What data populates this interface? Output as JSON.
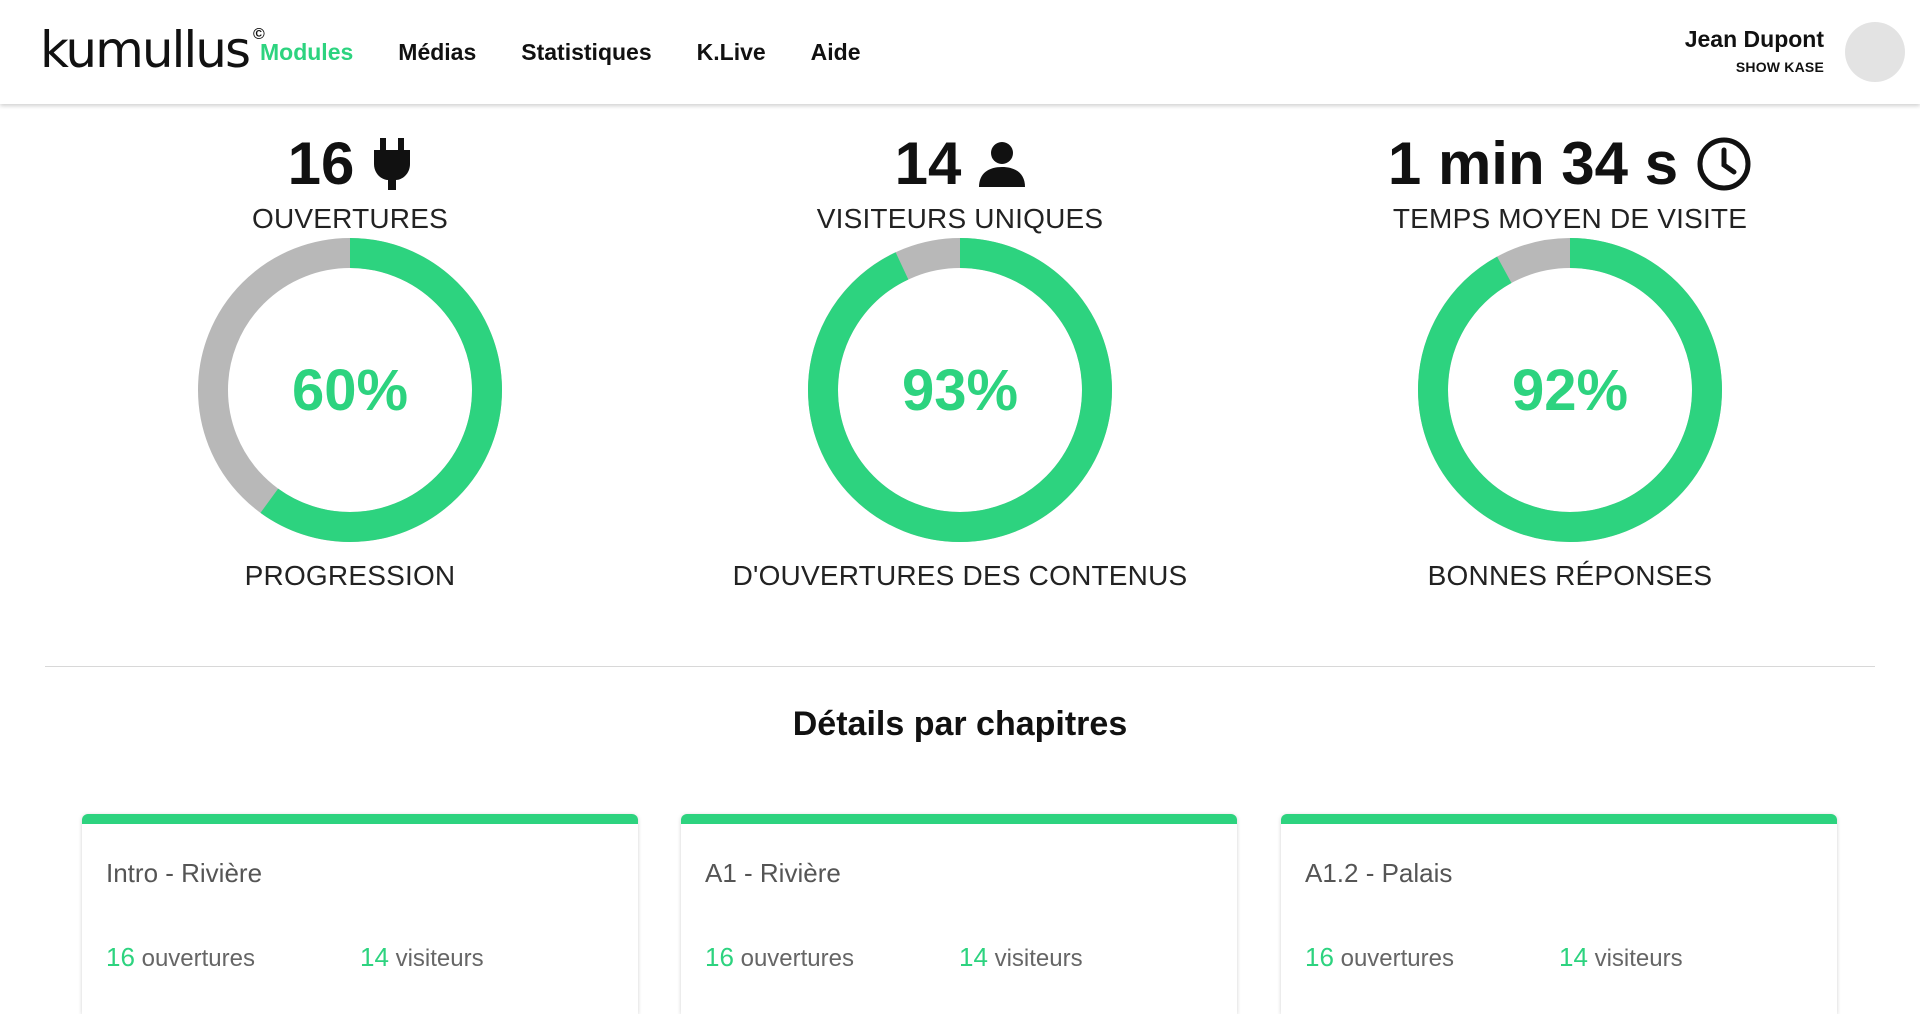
{
  "header": {
    "logo_text": "kumullus",
    "logo_mark": "©",
    "nav": [
      "Modules",
      "Médias",
      "Statistiques",
      "K.Live",
      "Aide"
    ],
    "active_nav": "Modules",
    "user_name": "Jean Dupont",
    "user_org": "SHOW KASE"
  },
  "stats": [
    {
      "value": "16",
      "icon": "plug-icon",
      "label": "OUVERTURES",
      "percent": 60,
      "percent_label": "60%",
      "bottom": "PROGRESSION"
    },
    {
      "value": "14",
      "icon": "user-icon",
      "label": "VISITEURS UNIQUES",
      "percent": 93,
      "percent_label": "93%",
      "bottom": "D'OUVERTURES DES CONTENUS"
    },
    {
      "value": "1 min 34 s",
      "icon": "clock-icon",
      "label": "TEMPS MOYEN DE VISITE",
      "percent": 92,
      "percent_label": "92%",
      "bottom": "BONNES RÉPONSES"
    }
  ],
  "section_title": "Détails par chapitres",
  "chapters": [
    {
      "title": "Intro - Rivière",
      "openings": "16",
      "openings_label": "ouvertures",
      "visitors": "14",
      "visitors_label": "visiteurs"
    },
    {
      "title": "A1 - Rivière",
      "openings": "16",
      "openings_label": "ouvertures",
      "visitors": "14",
      "visitors_label": "visiteurs"
    },
    {
      "title": "A1.2 - Palais",
      "openings": "16",
      "openings_label": "ouvertures",
      "visitors": "14",
      "visitors_label": "visiteurs"
    }
  ],
  "colors": {
    "accent": "#2dd37f",
    "ring_bg": "#b8b8b8"
  }
}
